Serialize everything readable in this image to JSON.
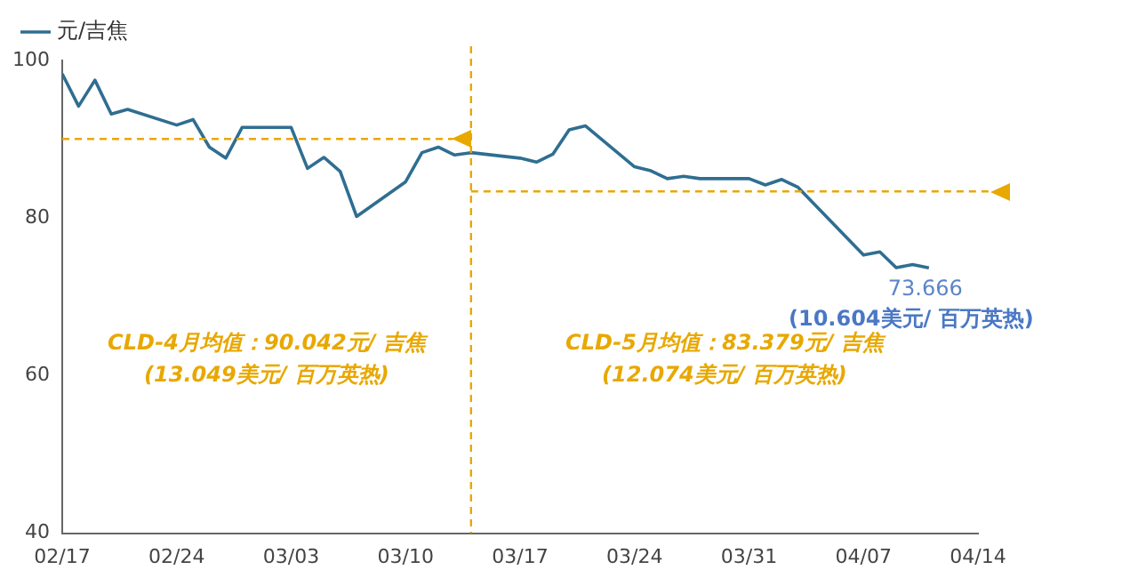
{
  "chart_data": {
    "type": "line",
    "x": [
      "--02-17",
      "--02-18",
      "--02-19",
      "--02-20",
      "--02-21",
      "--02-24",
      "--02-25",
      "--02-26",
      "--02-27",
      "--02-28",
      "--03-03",
      "--03-04",
      "--03-05",
      "--03-06",
      "--03-07",
      "--03-10",
      "--03-11",
      "--03-12",
      "--03-13",
      "--03-14",
      "--03-17",
      "--03-18",
      "--03-19",
      "--03-20",
      "--03-21",
      "--03-24",
      "--03-25",
      "--03-26",
      "--03-27",
      "--03-28",
      "--03-31",
      "--04-01",
      "--04-02",
      "--04-03",
      "--04-07",
      "--04-08",
      "--04-09",
      "--04-10",
      "--04-11"
    ],
    "series": [
      {
        "name": "元/吉焦",
        "color": "#2f6e91",
        "values": [
          98.3,
          94.2,
          97.5,
          93.2,
          93.8,
          91.8,
          92.5,
          89.0,
          87.6,
          91.5,
          91.5,
          86.3,
          87.7,
          85.9,
          80.2,
          84.6,
          88.3,
          89.0,
          88.0,
          88.3,
          87.6,
          87.1,
          88.1,
          91.2,
          91.7,
          86.5,
          86.0,
          85.0,
          85.3,
          85.0,
          85.0,
          84.2,
          84.9,
          83.9,
          75.3,
          75.7,
          73.7,
          74.1,
          73.666
        ],
        "value_labels": [
          null,
          null,
          null,
          null,
          null,
          null,
          null,
          null,
          null,
          null,
          null,
          null,
          null,
          null,
          null,
          null,
          null,
          null,
          null,
          null,
          null,
          null,
          null,
          null,
          null,
          null,
          null,
          null,
          null,
          null,
          null,
          null,
          null,
          null,
          null,
          null,
          null,
          null,
          "73.666"
        ]
      }
    ],
    "xlim": [
      "--02-17",
      "--04-14"
    ],
    "xticks": [
      {
        "value": "--02-17",
        "label": "02/17"
      },
      {
        "value": "--02-24",
        "label": "02/24"
      },
      {
        "value": "--03-03",
        "label": "03/03"
      },
      {
        "value": "--03-10",
        "label": "03/10"
      },
      {
        "value": "--03-17",
        "label": "03/17"
      },
      {
        "value": "--03-24",
        "label": "03/24"
      },
      {
        "value": "--03-31",
        "label": "03/31"
      },
      {
        "value": "--04-07",
        "label": "04/07"
      },
      {
        "value": "--04-14",
        "label": "04/14"
      }
    ],
    "ylim": [
      40,
      100
    ],
    "yticks": [
      40,
      60,
      80,
      100
    ],
    "grid": false,
    "legend": "top left",
    "marker": "none",
    "line_style": "solid",
    "ref_lines": [
      {
        "axis": "x",
        "value": "--03-14",
        "color": "#e8a800",
        "line_style": "dashed"
      },
      {
        "axis": "y",
        "value": 90.042,
        "label": "CLD-4月均值：90.042元/ 吉焦\n(13.049美元/ 百万英热)",
        "color": "#e8a800",
        "line_style": "dashed"
      },
      {
        "axis": "y",
        "value": 83.379,
        "label": "CLD-5月均值：83.379元/ 吉焦\n(12.074美元/ 百万英热)",
        "color": "#e8a800",
        "line_style": "dashed"
      }
    ],
    "annotations": [
      {
        "text": "(10.604美元/ 百万英热)",
        "x": "--04-11",
        "y": 73.666
      }
    ]
  }
}
